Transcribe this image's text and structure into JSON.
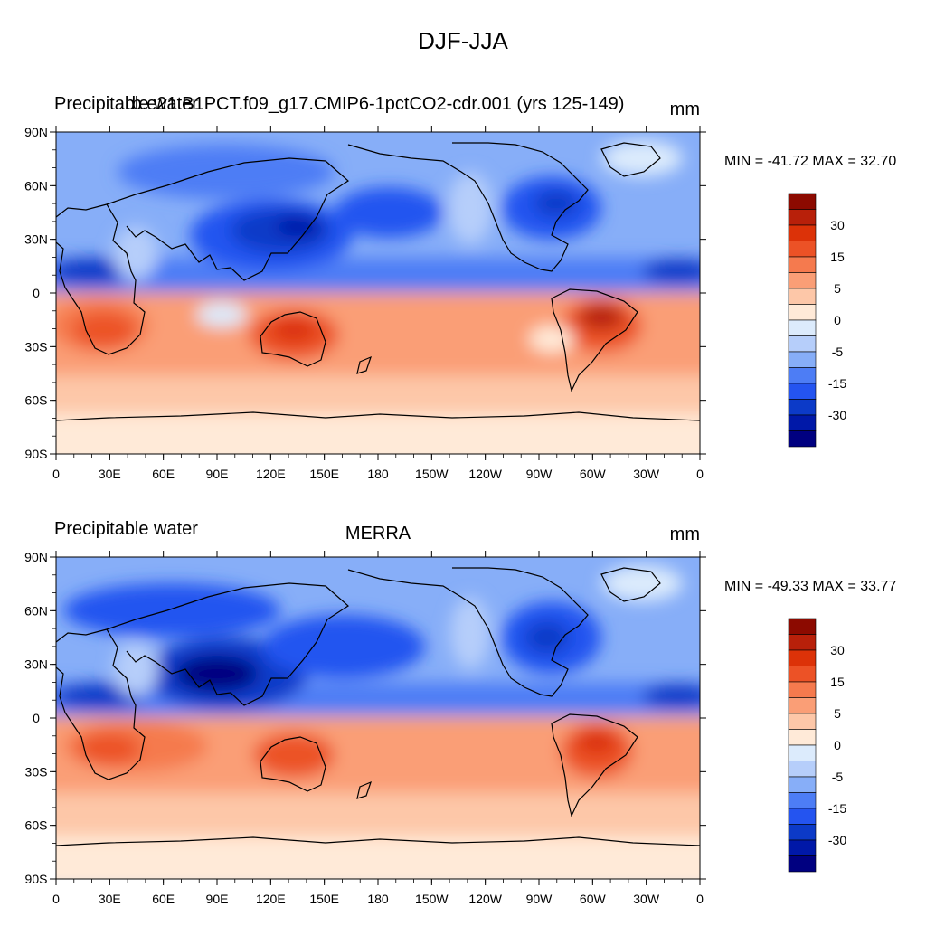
{
  "figure": {
    "title": "DJF-JJA"
  },
  "panels": [
    {
      "left_title": "Precipitable water",
      "center_title": "b.e21.B1PCT.f09_g17.CMIP6-1pctCO2-cdr.001 (yrs 125-149)",
      "units": "mm",
      "min_max": "MIN = -41.72 MAX =  32.70"
    },
    {
      "left_title": "Precipitable water",
      "center_title": "MERRA",
      "units": "mm",
      "min_max": "MIN = -49.33 MAX =  33.77"
    }
  ],
  "axes": {
    "lat_ticks": [
      "90N",
      "60N",
      "30N",
      "0",
      "30S",
      "60S",
      "90S"
    ],
    "lon_ticks": [
      "0",
      "30E",
      "60E",
      "90E",
      "120E",
      "150E",
      "180",
      "150W",
      "120W",
      "90W",
      "60W",
      "30W",
      "0"
    ]
  },
  "colorbar": {
    "colors": [
      "#000080",
      "#0018A8",
      "#0C3AC8",
      "#2454F0",
      "#4D7DF5",
      "#87AEF8",
      "#B6CEFA",
      "#DCEBFC",
      "#FFEAD8",
      "#FDC7A8",
      "#FA9E76",
      "#F57A4E",
      "#EC5226",
      "#DC3208",
      "#B8200A",
      "#8C0A00"
    ],
    "labels": [
      "-30",
      "-15",
      "-5",
      "0",
      "5",
      "15",
      "30"
    ]
  },
  "chart_data": [
    {
      "type": "heatmap",
      "title": "Precipitable water",
      "subtitle": "b.e21.B1PCT.f09_g17.CMIP6-1pctCO2-cdr.001 (yrs 125-149)",
      "units": "mm",
      "x_range": [
        0,
        360
      ],
      "y_range": [
        -90,
        90
      ],
      "min": -41.72,
      "max": 32.7
    },
    {
      "type": "heatmap",
      "title": "Precipitable water",
      "subtitle": "MERRA",
      "units": "mm",
      "x_range": [
        0,
        360
      ],
      "y_range": [
        -90,
        90
      ],
      "min": -49.33,
      "max": 33.77
    }
  ]
}
